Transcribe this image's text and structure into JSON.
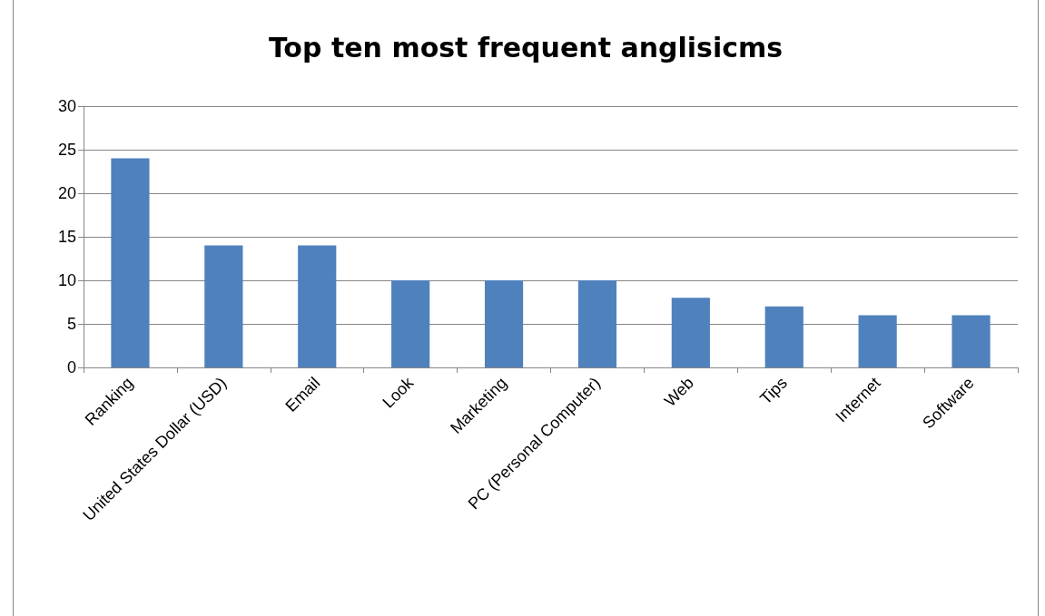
{
  "chart_data": {
    "type": "bar",
    "title": "Top ten most frequent anglisicms",
    "categories": [
      "Ranking",
      "United States Dollar (USD)",
      "Email",
      "Look",
      "Marketing",
      "PC (Personal Computer)",
      "Web",
      "Tips",
      "Internet",
      "Software"
    ],
    "values": [
      24,
      14,
      14,
      10,
      10,
      10,
      8,
      7,
      6,
      6
    ],
    "color": "#4f81bd",
    "ylim": [
      0,
      30
    ],
    "yticks": [
      0,
      5,
      10,
      15,
      20,
      25,
      30
    ],
    "grid": "y"
  }
}
